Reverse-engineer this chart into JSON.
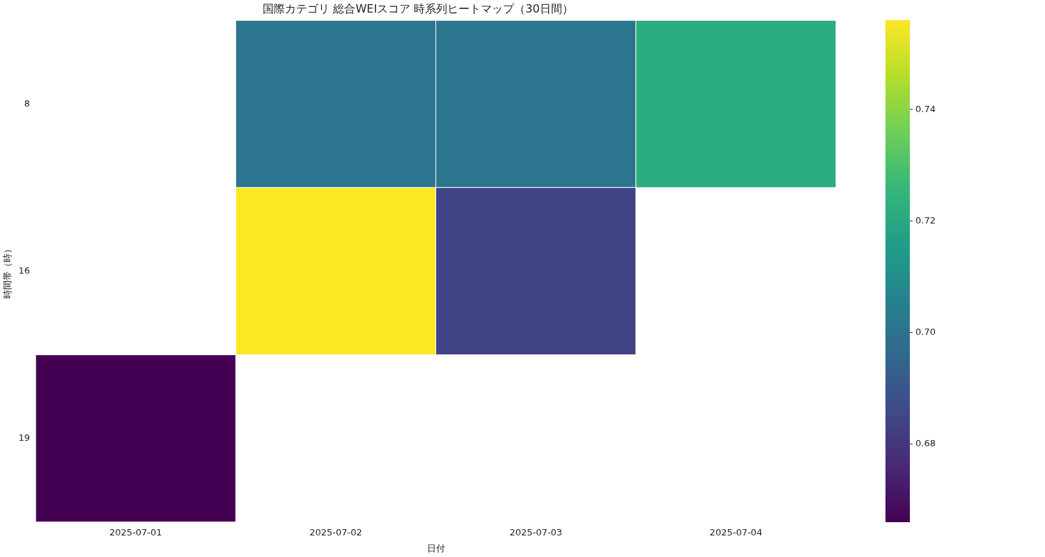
{
  "chart_data": {
    "type": "heatmap",
    "title": "国際カテゴリ 総合WEIスコア 時系列ヒートマップ（30日間）",
    "xlabel": "日付",
    "ylabel": "時間帯（時）",
    "categories": [
      "2025-07-01",
      "2025-07-02",
      "2025-07-03",
      "2025-07-04"
    ],
    "y_categories": [
      "8",
      "16",
      "19"
    ],
    "cells": [
      [
        null,
        0.701,
        0.701,
        0.722
      ],
      [
        null,
        0.756,
        0.684,
        null
      ],
      [
        0.666,
        null,
        null,
        null
      ]
    ],
    "clim": [
      0.666,
      0.756
    ],
    "cticks": [
      0.68,
      {
        "value": 0.7,
        "label": "0.70"
      },
      0.72,
      0.74
    ]
  }
}
